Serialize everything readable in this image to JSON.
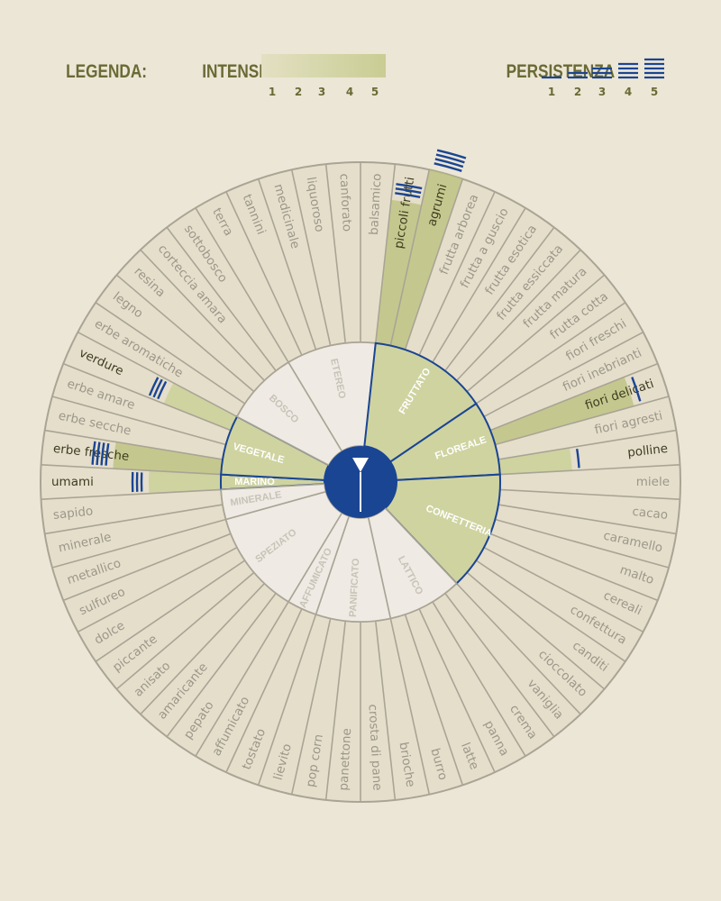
{
  "colors": {
    "background": "#ece6d6",
    "wheel_fill": "#e5decb",
    "inner_fill": "#efeae3",
    "line": "#a9a495",
    "highlight": "#cfd3a0",
    "dark_highlight": "#b9c079",
    "blue": "#1a4593",
    "legend_text": "#6a6a35",
    "label_text": "#9c978a",
    "label_dark": "#3d3d22",
    "inner_label": "#ffffff",
    "inner_label_dim": "#c8c3b8"
  },
  "legend": {
    "title": "LEGENDA:",
    "intensity_label": "INTENSITÀ",
    "intensity_ticks": [
      "1",
      "2",
      "3",
      "4",
      "5"
    ],
    "persistence_label": "PERSISTENZA",
    "persistence_ticks": [
      "1",
      "2",
      "3",
      "4",
      "5"
    ]
  },
  "categories": [
    {
      "name": "MARINO",
      "highlighted": true
    },
    {
      "name": "VEGETALE",
      "highlighted": true
    },
    {
      "name": "BOSCO",
      "highlighted": false
    },
    {
      "name": "ETEREO",
      "highlighted": false
    },
    {
      "name": "FRUTTATO",
      "highlighted": true
    },
    {
      "name": "FLOREALE",
      "highlighted": true
    },
    {
      "name": "CONFETTERIA",
      "highlighted": true
    },
    {
      "name": "LATTICO",
      "highlighted": false
    },
    {
      "name": "PANIFICATO",
      "highlighted": false
    },
    {
      "name": "AFFUMICATO",
      "highlighted": false
    },
    {
      "name": "SPEZIATO",
      "highlighted": false
    },
    {
      "name": "MINERALE",
      "highlighted": false
    }
  ],
  "descriptors": [
    {
      "name": "umami",
      "intensity": 2,
      "persistence": 3
    },
    {
      "name": "erbe fresche",
      "intensity": 3,
      "persistence": 4
    },
    {
      "name": "erbe secche"
    },
    {
      "name": "erbe amare"
    },
    {
      "name": "verdure",
      "intensity": 2,
      "persistence": 3
    },
    {
      "name": "erbe aromatiche"
    },
    {
      "name": "legno"
    },
    {
      "name": "resina"
    },
    {
      "name": "corteccia amara"
    },
    {
      "name": "sottobosco"
    },
    {
      "name": "terra"
    },
    {
      "name": "tannini"
    },
    {
      "name": "medicinale"
    },
    {
      "name": "liquoroso"
    },
    {
      "name": "canforato"
    },
    {
      "name": "balsamico"
    },
    {
      "name": "piccoli frutti",
      "intensity": 4,
      "persistence": 3
    },
    {
      "name": "agrumi",
      "intensity": 5,
      "persistence": 4
    },
    {
      "name": "frutta arborea"
    },
    {
      "name": "frutta a guscio"
    },
    {
      "name": "frutta esotica"
    },
    {
      "name": "frutta essiccata"
    },
    {
      "name": "frutta matura"
    },
    {
      "name": "frutta cotta"
    },
    {
      "name": "fiori freschi"
    },
    {
      "name": "fiori inebrianti"
    },
    {
      "name": "fiori delicati",
      "intensity": 4,
      "persistence": 1
    },
    {
      "name": "fiori agresti"
    },
    {
      "name": "polline",
      "intensity": 2,
      "persistence": 1
    },
    {
      "name": "miele"
    },
    {
      "name": "cacao"
    },
    {
      "name": "caramello"
    },
    {
      "name": "malto"
    },
    {
      "name": "cereali"
    },
    {
      "name": "confettura"
    },
    {
      "name": "canditi"
    },
    {
      "name": "cioccolato"
    },
    {
      "name": "vaniglia"
    },
    {
      "name": "crema"
    },
    {
      "name": "panna"
    },
    {
      "name": "latte"
    },
    {
      "name": "burro"
    },
    {
      "name": "brioche"
    },
    {
      "name": "crosta di pane"
    },
    {
      "name": "panettone"
    },
    {
      "name": "pop corn"
    },
    {
      "name": "lievito"
    },
    {
      "name": "tostato"
    },
    {
      "name": "affumicato"
    },
    {
      "name": "pepato"
    },
    {
      "name": "amaricante"
    },
    {
      "name": "anisato"
    },
    {
      "name": "piccante"
    },
    {
      "name": "dolce"
    },
    {
      "name": "sulfureo"
    },
    {
      "name": "metallico"
    },
    {
      "name": "minerale"
    },
    {
      "name": "sapido"
    }
  ],
  "center_icon": "cocktail-glass-icon"
}
